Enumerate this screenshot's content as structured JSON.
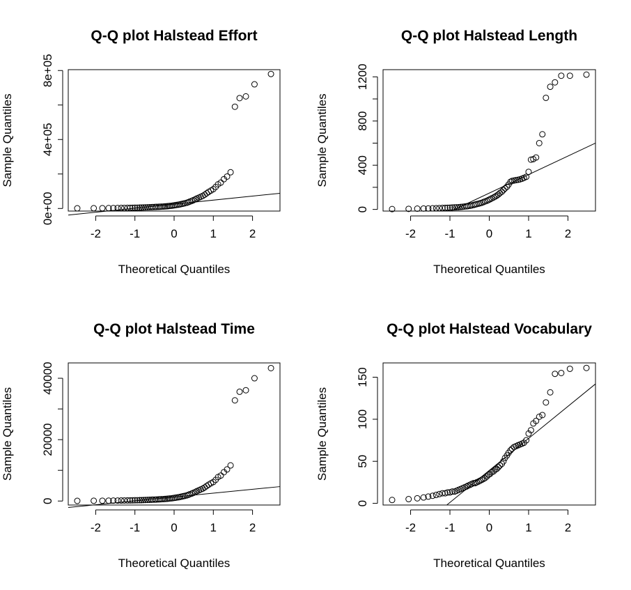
{
  "chart_data": [
    {
      "type": "scatter",
      "title": "Q-Q plot  Halstead Effort",
      "xlabel": "Theoretical Quantiles",
      "ylabel": "Sample Quantiles",
      "xlim": [
        -2.7,
        2.7
      ],
      "ylim": [
        -15000,
        805000
      ],
      "xticks": [
        -2,
        -1,
        0,
        1,
        2
      ],
      "xtick_labels": [
        "-2",
        "-1",
        "0",
        "1",
        "2"
      ],
      "yticks": [
        0,
        200000,
        400000,
        600000,
        800000
      ],
      "ytick_labels": [
        "0e+00",
        "",
        "4e+05",
        "",
        "8e+05"
      ],
      "qqline": {
        "x": [
          -2.7,
          2.7
        ],
        "y": [
          -38000,
          88000
        ]
      },
      "x": [
        -2.47,
        -2.05,
        -1.83,
        -1.67,
        -1.55,
        -1.44,
        -1.35,
        -1.27,
        -1.19,
        -1.12,
        -1.06,
        -1.0,
        -0.94,
        -0.88,
        -0.83,
        -0.78,
        -0.73,
        -0.68,
        -0.63,
        -0.58,
        -0.54,
        -0.49,
        -0.45,
        -0.4,
        -0.36,
        -0.32,
        -0.27,
        -0.23,
        -0.19,
        -0.15,
        -0.11,
        -0.06,
        -0.02,
        0.02,
        0.06,
        0.11,
        0.15,
        0.19,
        0.23,
        0.27,
        0.32,
        0.36,
        0.4,
        0.45,
        0.49,
        0.54,
        0.58,
        0.63,
        0.68,
        0.73,
        0.78,
        0.83,
        0.88,
        0.94,
        1.0,
        1.06,
        1.12,
        1.19,
        1.27,
        1.35,
        1.44,
        1.55,
        1.67,
        1.83,
        2.05,
        2.47
      ],
      "y": [
        1000,
        1500,
        1800,
        2100,
        2400,
        2700,
        3000,
        3300,
        3600,
        3900,
        4200,
        4500,
        4800,
        5100,
        5400,
        5800,
        6200,
        6600,
        7000,
        7500,
        8000,
        8500,
        9000,
        9600,
        10200,
        10800,
        11500,
        12200,
        13000,
        14000,
        15000,
        16000,
        17500,
        19000,
        20500,
        22000,
        24000,
        26000,
        28000,
        30000,
        33000,
        36000,
        40000,
        44000,
        48000,
        53000,
        58000,
        63000,
        68000,
        73000,
        80000,
        88000,
        96000,
        104000,
        112000,
        125000,
        140000,
        150000,
        170000,
        185000,
        210000,
        590000,
        640000,
        650000,
        720000,
        780000
      ]
    },
    {
      "type": "scatter",
      "title": "Q-Q plot  Halstead Length",
      "xlabel": "Theoretical Quantiles",
      "ylabel": "Sample Quantiles",
      "xlim": [
        -2.7,
        2.7
      ],
      "ylim": [
        -15,
        1265
      ],
      "xticks": [
        -2,
        -1,
        0,
        1,
        2
      ],
      "xtick_labels": [
        "-2",
        "-1",
        "0",
        "1",
        "2"
      ],
      "yticks": [
        0,
        400,
        800,
        1200
      ],
      "ytick_labels": [
        "0",
        "400",
        "800",
        "1200"
      ],
      "yminor": [
        200,
        600,
        1000
      ],
      "qqline": {
        "x": [
          -0.97,
          2.7
        ],
        "y": [
          -15,
          600
        ]
      },
      "x": [
        -2.47,
        -2.05,
        -1.83,
        -1.67,
        -1.55,
        -1.44,
        -1.35,
        -1.27,
        -1.19,
        -1.12,
        -1.06,
        -1.0,
        -0.94,
        -0.88,
        -0.83,
        -0.78,
        -0.73,
        -0.68,
        -0.63,
        -0.58,
        -0.54,
        -0.49,
        -0.45,
        -0.4,
        -0.36,
        -0.32,
        -0.27,
        -0.23,
        -0.19,
        -0.15,
        -0.11,
        -0.06,
        -0.02,
        0.02,
        0.06,
        0.11,
        0.15,
        0.19,
        0.23,
        0.27,
        0.32,
        0.36,
        0.4,
        0.45,
        0.49,
        0.54,
        0.58,
        0.63,
        0.68,
        0.73,
        0.78,
        0.83,
        0.88,
        0.94,
        1.0,
        1.06,
        1.12,
        1.19,
        1.27,
        1.35,
        1.44,
        1.55,
        1.67,
        1.83,
        2.05,
        2.47
      ],
      "y": [
        3,
        5,
        7,
        8,
        9,
        10,
        11,
        12,
        13,
        14,
        15,
        16,
        17,
        18,
        19,
        20,
        22,
        24,
        26,
        28,
        30,
        33,
        36,
        40,
        44,
        48,
        52,
        56,
        60,
        66,
        72,
        78,
        85,
        92,
        100,
        108,
        116,
        125,
        135,
        148,
        160,
        175,
        190,
        205,
        225,
        250,
        258,
        262,
        265,
        268,
        272,
        278,
        285,
        295,
        340,
        450,
        455,
        470,
        600,
        680,
        1010,
        1110,
        1150,
        1210,
        1210,
        1220
      ]
    },
    {
      "type": "scatter",
      "title": "Q-Q plot  Halstead Time",
      "xlabel": "Theoretical Quantiles",
      "ylabel": "Sample Quantiles",
      "xlim": [
        -2.7,
        2.7
      ],
      "ylim": [
        -1300,
        45000
      ],
      "xticks": [
        -2,
        -1,
        0,
        1,
        2
      ],
      "xtick_labels": [
        "-2",
        "-1",
        "0",
        "1",
        "2"
      ],
      "yticks": [
        0,
        20000,
        40000
      ],
      "ytick_labels": [
        "0",
        "20000",
        "40000"
      ],
      "yminor": [
        10000,
        30000
      ],
      "qqline": {
        "x": [
          -2.7,
          2.7
        ],
        "y": [
          -2100,
          4700
        ]
      },
      "x": [
        -2.47,
        -2.05,
        -1.83,
        -1.67,
        -1.55,
        -1.44,
        -1.35,
        -1.27,
        -1.19,
        -1.12,
        -1.06,
        -1.0,
        -0.94,
        -0.88,
        -0.83,
        -0.78,
        -0.73,
        -0.68,
        -0.63,
        -0.58,
        -0.54,
        -0.49,
        -0.45,
        -0.4,
        -0.36,
        -0.32,
        -0.27,
        -0.23,
        -0.19,
        -0.15,
        -0.11,
        -0.06,
        -0.02,
        0.02,
        0.06,
        0.11,
        0.15,
        0.19,
        0.23,
        0.27,
        0.32,
        0.36,
        0.4,
        0.45,
        0.49,
        0.54,
        0.58,
        0.63,
        0.68,
        0.73,
        0.78,
        0.83,
        0.88,
        0.94,
        1.0,
        1.06,
        1.12,
        1.19,
        1.27,
        1.35,
        1.44,
        1.55,
        1.67,
        1.83,
        2.05,
        2.47
      ],
      "y": [
        50,
        80,
        100,
        120,
        135,
        150,
        165,
        180,
        200,
        215,
        230,
        250,
        265,
        280,
        300,
        320,
        345,
        370,
        390,
        420,
        445,
        470,
        500,
        530,
        565,
        600,
        640,
        680,
        720,
        780,
        830,
        890,
        970,
        1050,
        1140,
        1220,
        1330,
        1440,
        1560,
        1670,
        1830,
        2000,
        2220,
        2440,
        2670,
        2940,
        3220,
        3500,
        3780,
        4050,
        4440,
        4890,
        5330,
        5780,
        6200,
        6900,
        7800,
        8300,
        9400,
        10300,
        11600,
        32800,
        35600,
        36100,
        40000,
        43300
      ]
    },
    {
      "type": "scatter",
      "title": "Q-Q plot  Halstead Vocabulary",
      "xlabel": "Theoretical Quantiles",
      "ylabel": "Sample Quantiles",
      "xlim": [
        -2.7,
        2.7
      ],
      "ylim": [
        -2,
        167
      ],
      "xticks": [
        -2,
        -1,
        0,
        1,
        2
      ],
      "xtick_labels": [
        "-2",
        "-1",
        "0",
        "1",
        "2"
      ],
      "yticks": [
        0,
        50,
        100,
        150
      ],
      "ytick_labels": [
        "0",
        "50",
        "100",
        "150"
      ],
      "qqline": {
        "x": [
          -1.08,
          2.7
        ],
        "y": [
          -2,
          142
        ]
      },
      "x": [
        -2.47,
        -2.05,
        -1.83,
        -1.67,
        -1.55,
        -1.44,
        -1.35,
        -1.27,
        -1.19,
        -1.12,
        -1.06,
        -1.0,
        -0.94,
        -0.88,
        -0.83,
        -0.78,
        -0.73,
        -0.68,
        -0.63,
        -0.58,
        -0.54,
        -0.49,
        -0.45,
        -0.4,
        -0.36,
        -0.32,
        -0.27,
        -0.23,
        -0.19,
        -0.15,
        -0.11,
        -0.06,
        -0.02,
        0.02,
        0.06,
        0.11,
        0.15,
        0.19,
        0.23,
        0.27,
        0.32,
        0.36,
        0.4,
        0.45,
        0.49,
        0.54,
        0.58,
        0.63,
        0.68,
        0.73,
        0.78,
        0.83,
        0.88,
        0.94,
        1.0,
        1.06,
        1.12,
        1.19,
        1.27,
        1.35,
        1.44,
        1.55,
        1.67,
        1.83,
        2.05,
        2.47
      ],
      "y": [
        4,
        5,
        6,
        7,
        8,
        9,
        10,
        11,
        12,
        12,
        13,
        13,
        14,
        14,
        15,
        16,
        17,
        18,
        19,
        20,
        21,
        22,
        23,
        24,
        24,
        25,
        26,
        27,
        28,
        29,
        30,
        32,
        34,
        35,
        37,
        38,
        40,
        41,
        43,
        45,
        47,
        50,
        54,
        57,
        60,
        63,
        65,
        67,
        68,
        69,
        70,
        71,
        72,
        75,
        83,
        87,
        95,
        98,
        103,
        105,
        120,
        132,
        154,
        155,
        160,
        161
      ]
    }
  ]
}
